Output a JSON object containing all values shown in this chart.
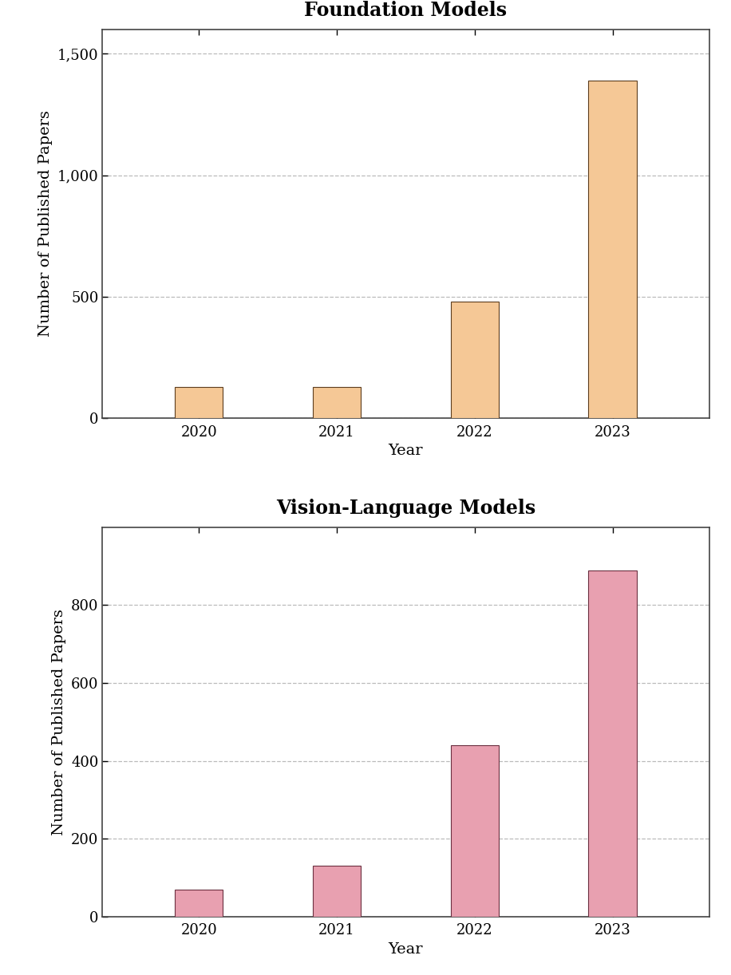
{
  "foundation": {
    "title": "Foundation Models",
    "years": [
      "2020",
      "2021",
      "2022",
      "2023"
    ],
    "values": [
      130,
      130,
      480,
      1390
    ],
    "bar_color": "#F5C896",
    "bar_edgecolor": "#5C3D1E",
    "ylim": [
      0,
      1600
    ],
    "yticks": [
      0,
      500,
      1000,
      1500
    ],
    "ylabel": "Number of Published Papers",
    "xlabel": "Year"
  },
  "vlm": {
    "title": "Vision-Language Models",
    "years": [
      "2020",
      "2021",
      "2022",
      "2023"
    ],
    "values": [
      70,
      130,
      440,
      890
    ],
    "bar_color": "#E8A0B0",
    "bar_edgecolor": "#6B3040",
    "ylim": [
      0,
      1000
    ],
    "yticks": [
      0,
      200,
      400,
      600,
      800
    ],
    "ylabel": "Number of Published Papers",
    "xlabel": "Year"
  },
  "title_fontsize": 17,
  "label_fontsize": 14,
  "tick_fontsize": 13,
  "bar_width": 0.35,
  "grid_color": "#AAAAAA",
  "grid_linestyle": "--",
  "grid_linewidth": 0.9,
  "background_color": "#FFFFFF",
  "spine_color": "#444444"
}
